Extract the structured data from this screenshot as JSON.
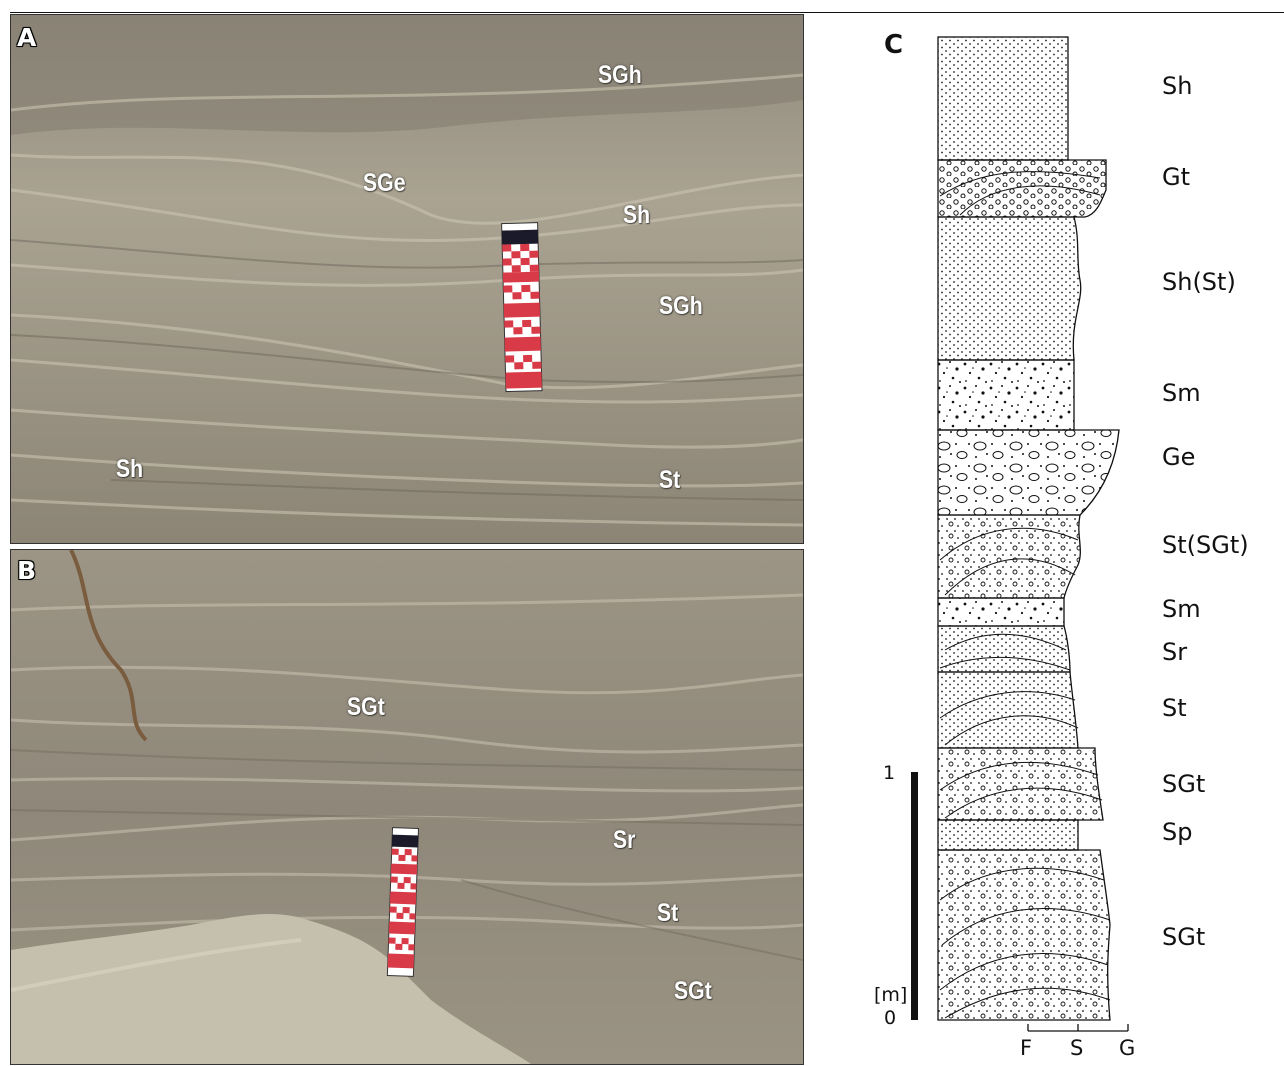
{
  "panels": {
    "A": {
      "letter": "A",
      "labels": [
        "SGh",
        "SGe",
        "Sh",
        "SGh",
        "Sh",
        "St"
      ]
    },
    "B": {
      "letter": "B",
      "labels": [
        "SGt",
        "Sr",
        "St",
        "SGt"
      ]
    },
    "C": {
      "letter": "C",
      "log_labels": [
        "Sh",
        "Gt",
        "Sh(St)",
        "Sm",
        "Ge",
        "St(SGt)",
        "Sm",
        "Sr",
        "St",
        "SGt",
        "Sp",
        "SGt"
      ],
      "scale": {
        "top": "1",
        "unit": "[m]",
        "bottom": "0"
      },
      "grain_axis": [
        "F",
        "S",
        "G"
      ]
    }
  },
  "colors": {
    "photo_sediment": "#a59d8c",
    "scale_bar_red": "#d83a47",
    "scale_bar_white": "#ffffff",
    "ink": "#111111"
  }
}
